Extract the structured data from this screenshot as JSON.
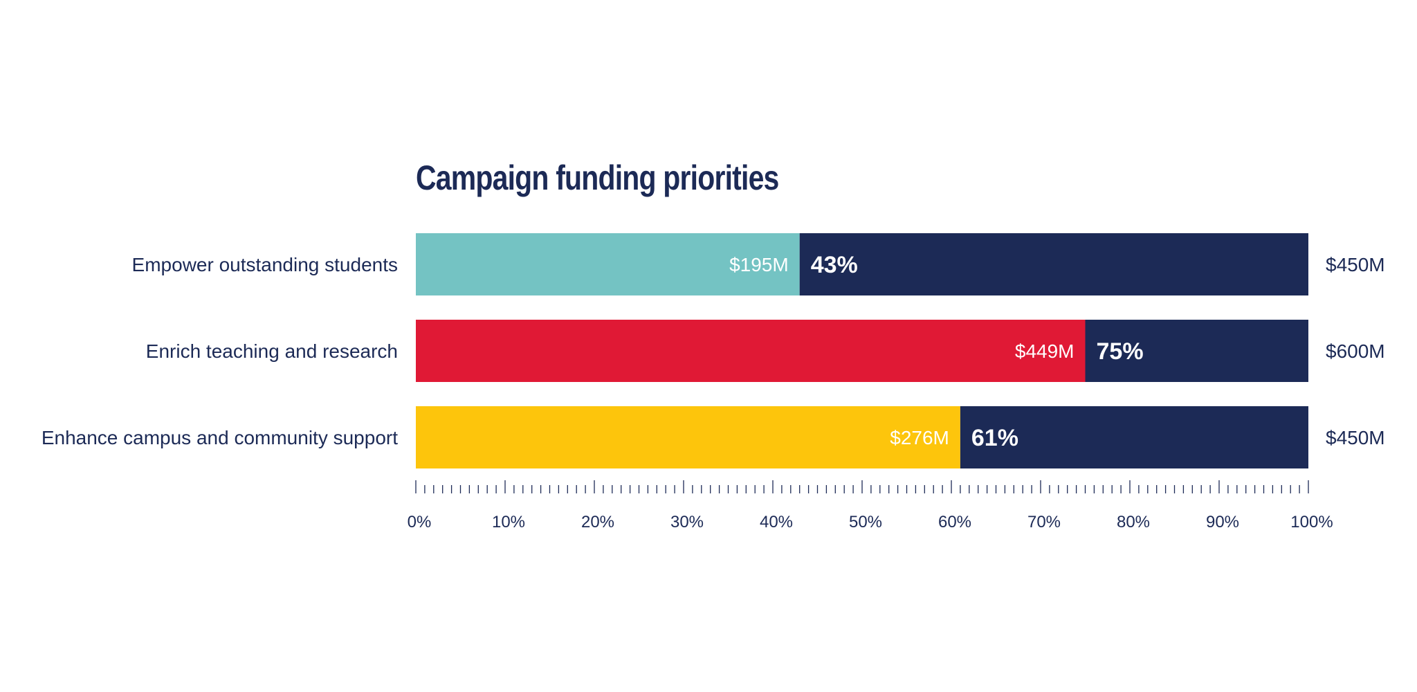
{
  "chart_data": {
    "type": "bar",
    "stacked": true,
    "orientation": "horizontal",
    "title": "Campaign funding priorities",
    "categories": [
      "Empower outstanding students",
      "Enrich teaching and research",
      "Enhance campus and community support"
    ],
    "raised_labels": [
      "$195M",
      "$449M",
      "$276M"
    ],
    "percent_values": [
      43,
      75,
      61
    ],
    "percent_labels": [
      "43%",
      "75%",
      "61%"
    ],
    "goal_labels": [
      "$450M",
      "$600M",
      "$450M"
    ],
    "colors": [
      "#74c3c3",
      "#e01935",
      "#fdc50c"
    ],
    "remainder_color": "#1c2a56",
    "xlim": [
      0,
      100
    ],
    "xticks": [
      "0%",
      "10%",
      "20%",
      "30%",
      "40%",
      "50%",
      "60%",
      "70%",
      "80%",
      "90%",
      "100%"
    ],
    "minor_ticks_per_major": 10,
    "xlabel": "",
    "ylabel": "",
    "grid": false
  }
}
